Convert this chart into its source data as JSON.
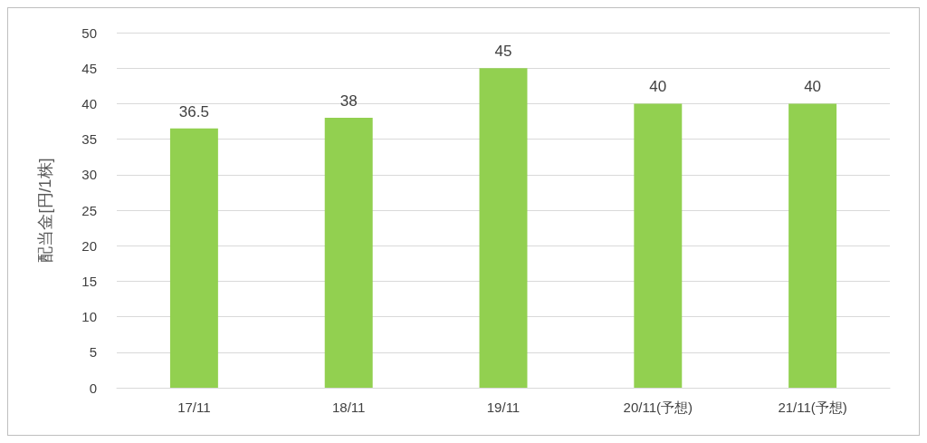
{
  "chart_data": {
    "type": "bar",
    "ylabel": "配当金[円/1株]",
    "categories": [
      "17/11",
      "18/11",
      "19/11",
      "20/11(予想)",
      "21/11(予想)"
    ],
    "values": [
      36.5,
      38,
      45,
      40,
      40
    ],
    "color": "#92d050",
    "ylim": [
      0,
      50
    ],
    "yticks": [
      0,
      5,
      10,
      15,
      20,
      25,
      30,
      35,
      40,
      45,
      50
    ],
    "grid": "y",
    "data_labels": true
  }
}
